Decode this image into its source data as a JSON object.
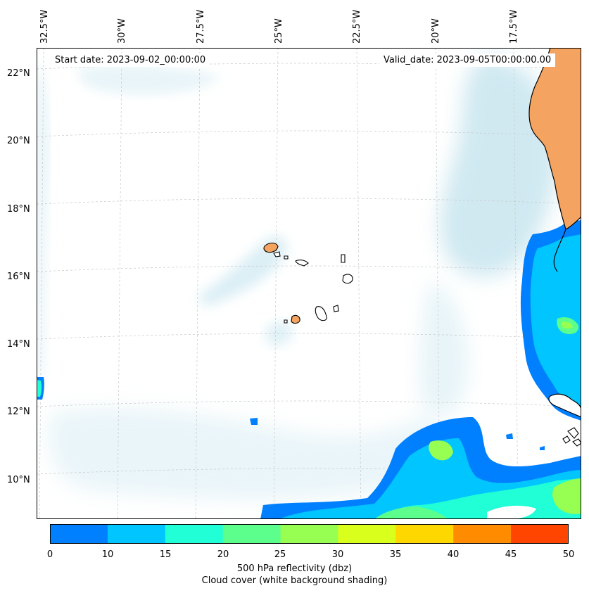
{
  "map": {
    "start_date": "Start date: 2023-09-02_00:00:00",
    "valid_date": "Valid_date: 2023-09-05T00:00:00.00",
    "lon_labels": [
      "32.5°W",
      "30°W",
      "27.5°W",
      "25°W",
      "22.5°W",
      "20°W",
      "17.5°W"
    ],
    "lat_labels": [
      "22°N",
      "20°N",
      "18°N",
      "16°N",
      "14°N",
      "12°N",
      "10°N"
    ],
    "land_color": "#f4a460",
    "coast_color": "#000000"
  },
  "colorbar": {
    "ticks": [
      "0",
      "10",
      "15",
      "20",
      "25",
      "30",
      "35",
      "40",
      "45",
      "50"
    ],
    "colors": [
      "#0080ff",
      "#00c5ff",
      "#20ffd5",
      "#5cff8b",
      "#97ff52",
      "#d9ff1c",
      "#ffd700",
      "#ff8c00",
      "#ff4500"
    ],
    "label": "500 hPa reflectivity (dbz)",
    "sublabel": "Cloud cover (white background shading)"
  }
}
